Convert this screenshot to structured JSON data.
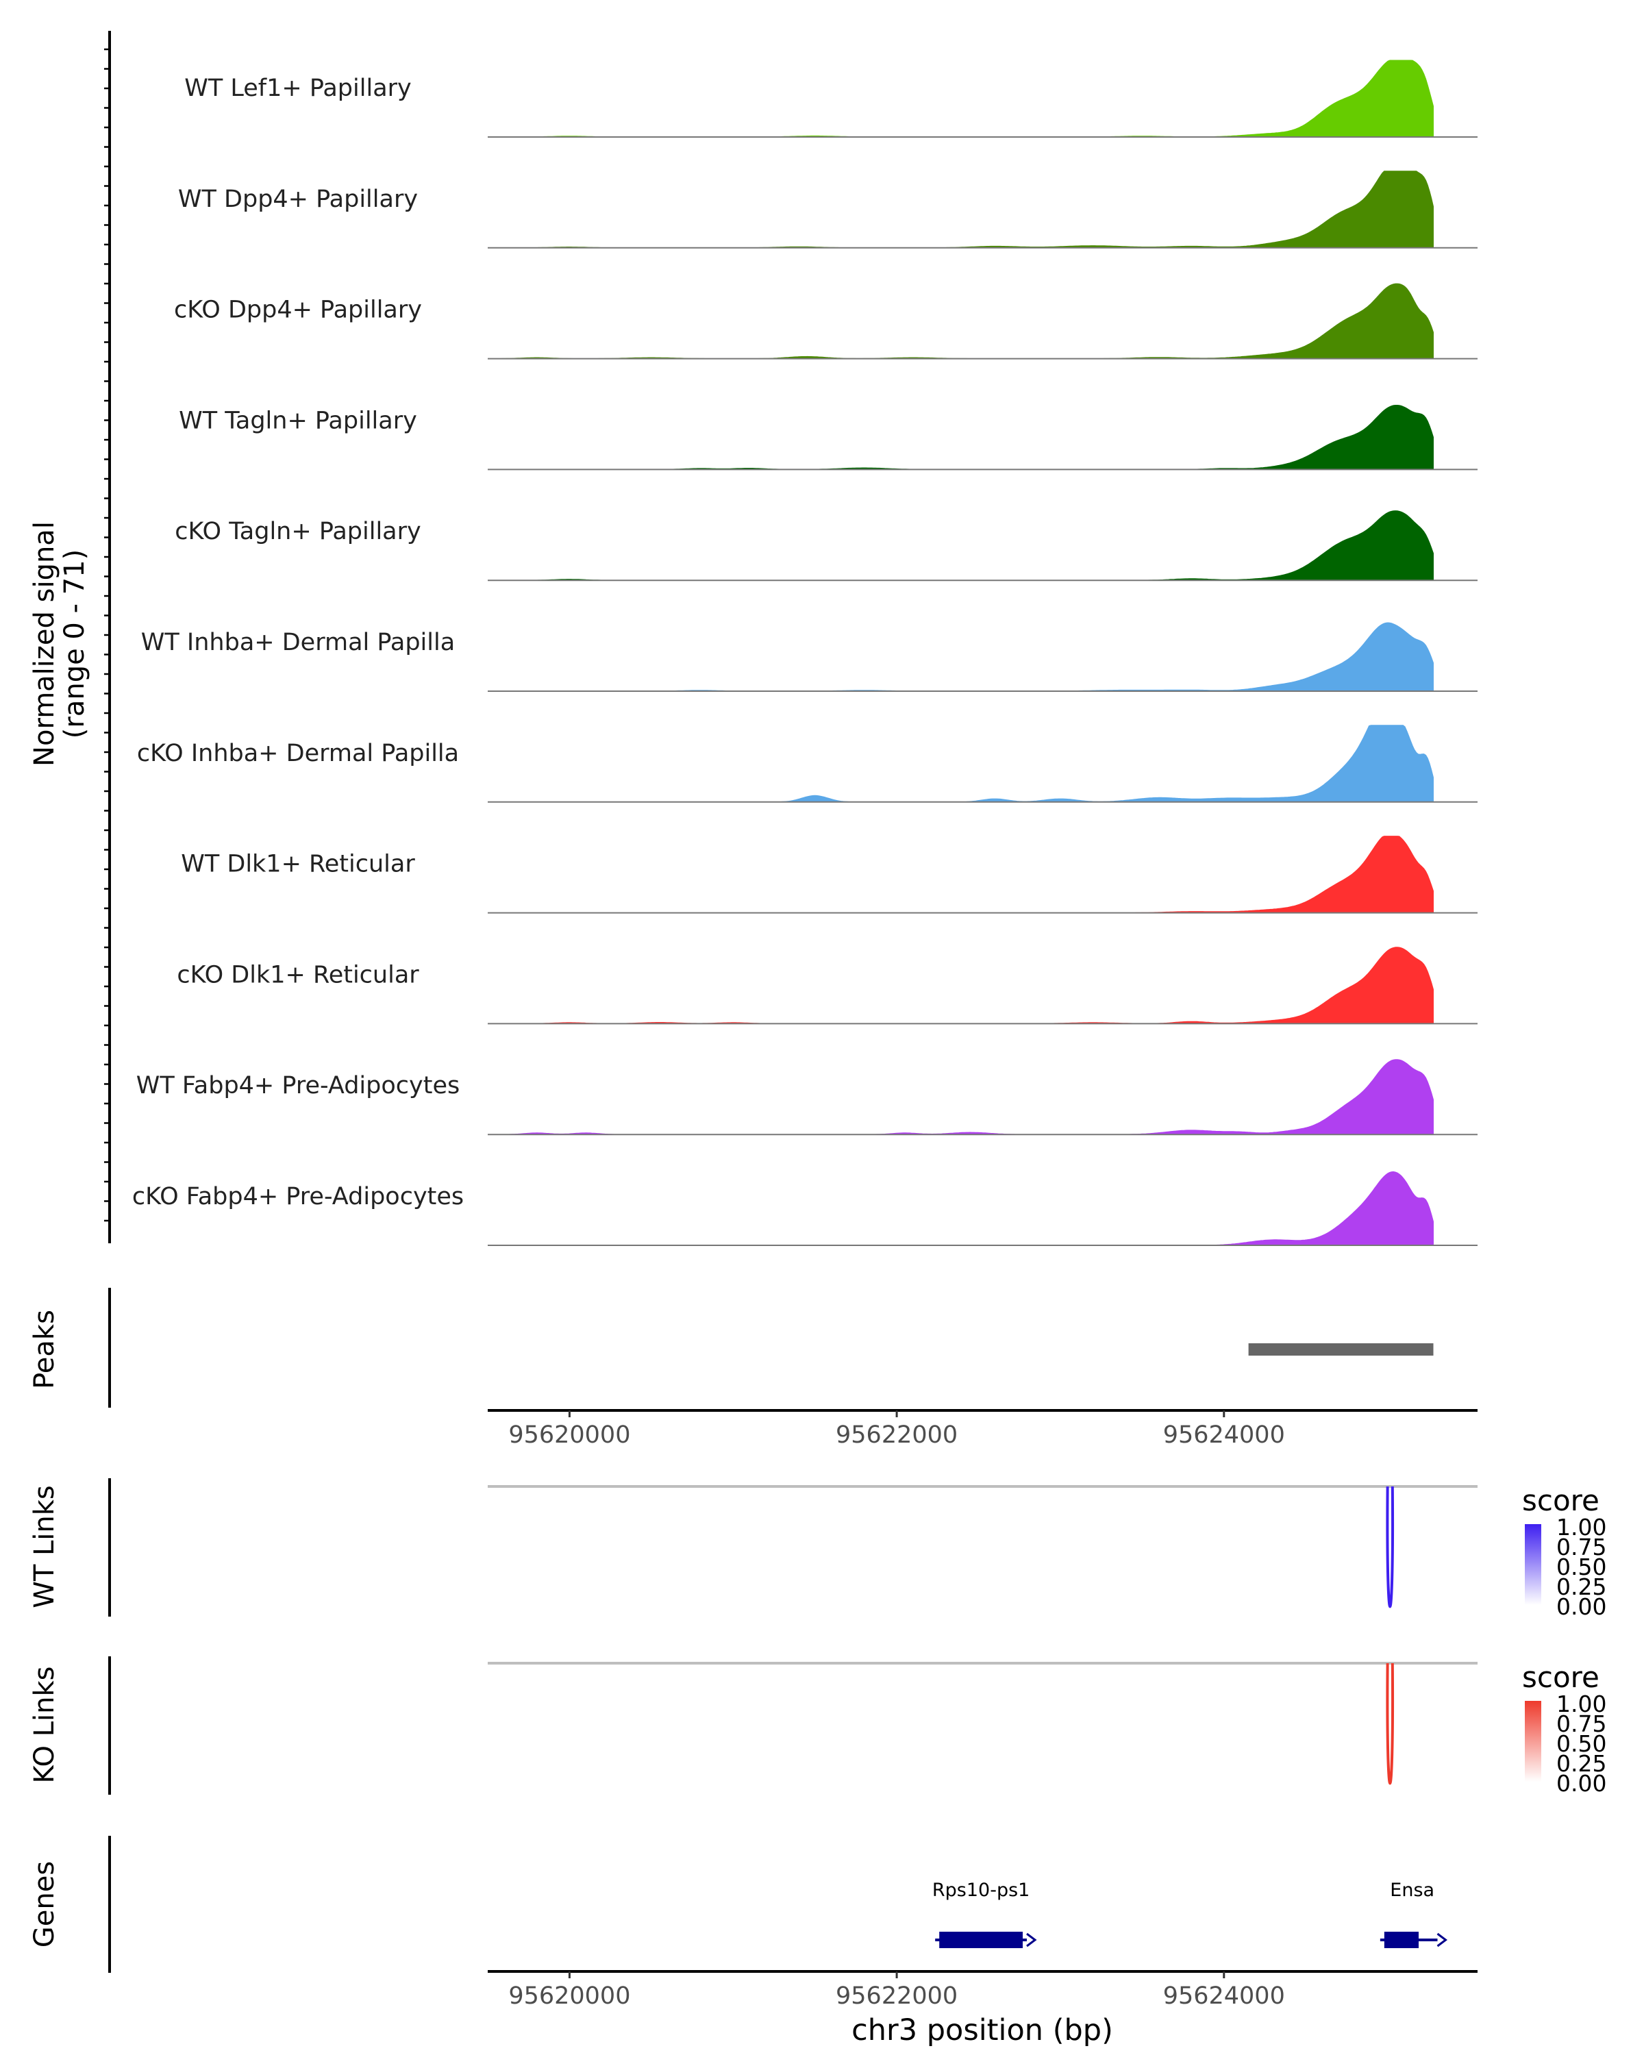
{
  "chart_data": {
    "type": "area",
    "title": "",
    "xlabel": "chr3 position (bp)",
    "xlim": [
      95619500,
      95625550
    ],
    "x_ticks": [
      95620000,
      95622000,
      95624000
    ],
    "x_tick_labels": [
      "95620000",
      "95622000",
      "95624000"
    ],
    "coverage": {
      "ylabel_line1": "Normalized signal",
      "ylabel_line2": "(range 0 - 71)",
      "ylim": [
        0,
        71
      ],
      "region_start": 95619500,
      "region_end": 95625280,
      "tracks": [
        {
          "name": "WT Lef1+ Papillary",
          "color": "#66CC00",
          "bumps": [
            [
              95620000,
              0.8,
              120
            ],
            [
              95621500,
              1,
              140
            ],
            [
              95623500,
              0.8,
              150
            ],
            [
              95624300,
              3,
              170
            ],
            [
              95624650,
              11,
              120
            ],
            [
              95624880,
              34,
              200
            ],
            [
              95625050,
              45,
              110
            ],
            [
              95625150,
              20,
              60
            ],
            [
              95625230,
              28,
              50
            ]
          ]
        },
        {
          "name": "WT Dpp4+ Papillary",
          "color": "#4A8A00",
          "bumps": [
            [
              95620000,
              0.8,
              120
            ],
            [
              95621400,
              1,
              140
            ],
            [
              95622600,
              1.5,
              150
            ],
            [
              95623200,
              2,
              200
            ],
            [
              95623800,
              1.5,
              150
            ],
            [
              95624400,
              5,
              170
            ],
            [
              95624700,
              8,
              120
            ],
            [
              95624850,
              30,
              200
            ],
            [
              95625050,
              57,
              110
            ],
            [
              95625140,
              20,
              60
            ],
            [
              95625240,
              38,
              50
            ]
          ]
        },
        {
          "name": "cKO Dpp4+ Papillary",
          "color": "#4A8A00",
          "bumps": [
            [
              95619800,
              1,
              100
            ],
            [
              95620500,
              1,
              150
            ],
            [
              95621450,
              2,
              120
            ],
            [
              95622100,
              1,
              150
            ],
            [
              95623600,
              1.2,
              150
            ],
            [
              95624350,
              4,
              200
            ],
            [
              95624700,
              8,
              150
            ],
            [
              95624880,
              35,
              200
            ],
            [
              95625050,
              40,
              100
            ],
            [
              95625150,
              18,
              60
            ],
            [
              95625250,
              20,
              40
            ]
          ]
        },
        {
          "name": "WT Tagln+ Papillary",
          "color": "#006400",
          "bumps": [
            [
              95620800,
              1,
              100
            ],
            [
              95621100,
              1.2,
              100
            ],
            [
              95621800,
              1.5,
              150
            ],
            [
              95624000,
              1,
              100
            ],
            [
              95624400,
              2,
              150
            ],
            [
              95624650,
              5,
              120
            ],
            [
              95624850,
              28,
              220
            ],
            [
              95625050,
              38,
              110
            ],
            [
              95625150,
              12,
              60
            ],
            [
              95625240,
              28,
              50
            ]
          ]
        },
        {
          "name": "cKO Tagln+ Papillary",
          "color": "#006400",
          "bumps": [
            [
              95620000,
              1,
              100
            ],
            [
              95623800,
              1.5,
              120
            ],
            [
              95624450,
              3,
              200
            ],
            [
              95624700,
              10,
              150
            ],
            [
              95624850,
              30,
              200
            ],
            [
              95625050,
              42,
              110
            ],
            [
              95625150,
              14,
              60
            ],
            [
              95625240,
              22,
              50
            ]
          ]
        },
        {
          "name": "WT Inhba+ Dermal Papilla",
          "color": "#5BA8E8",
          "bumps": [
            [
              95620800,
              0.8,
              120
            ],
            [
              95621800,
              0.8,
              150
            ],
            [
              95623400,
              1,
              200
            ],
            [
              95623800,
              1,
              150
            ],
            [
              95624350,
              5,
              150
            ],
            [
              95624600,
              6,
              120
            ],
            [
              95624880,
              28,
              200
            ],
            [
              95625020,
              40,
              120
            ],
            [
              95625150,
              12,
              60
            ],
            [
              95625240,
              24,
              50
            ]
          ]
        },
        {
          "name": "cKO Inhba+ Dermal Papilla",
          "color": "#5BA8E8",
          "bumps": [
            [
              95621500,
              6,
              80
            ],
            [
              95622600,
              3,
              80
            ],
            [
              95623000,
              3,
              100
            ],
            [
              95623600,
              4,
              150
            ],
            [
              95624000,
              3,
              150
            ],
            [
              95624400,
              4,
              200
            ],
            [
              95624700,
              9,
              120
            ],
            [
              95624880,
              35,
              150
            ],
            [
              95625000,
              62,
              100
            ],
            [
              95625130,
              25,
              60
            ],
            [
              95625240,
              32,
              40
            ]
          ]
        },
        {
          "name": "WT Dlk1+ Reticular",
          "color": "#FF3030",
          "bumps": [
            [
              95623800,
              1.2,
              150
            ],
            [
              95624350,
              3,
              200
            ],
            [
              95624650,
              6,
              120
            ],
            [
              95624880,
              32,
              200
            ],
            [
              95625030,
              48,
              110
            ],
            [
              95625150,
              14,
              60
            ],
            [
              95625240,
              18,
              40
            ]
          ]
        },
        {
          "name": "cKO Dlk1+ Reticular",
          "color": "#FF3030",
          "bumps": [
            [
              95620000,
              1,
              100
            ],
            [
              95620550,
              1.2,
              120
            ],
            [
              95621000,
              1,
              100
            ],
            [
              95623200,
              1,
              150
            ],
            [
              95623800,
              2,
              100
            ],
            [
              95624400,
              3,
              200
            ],
            [
              95624700,
              7,
              120
            ],
            [
              95624880,
              30,
              200
            ],
            [
              95625050,
              46,
              110
            ],
            [
              95625150,
              15,
              60
            ],
            [
              95625240,
              29,
              50
            ]
          ]
        },
        {
          "name": "WT Fabp4+ Pre-Adipocytes",
          "color": "#B040F0",
          "bumps": [
            [
              95619800,
              1.5,
              80
            ],
            [
              95620100,
              1.5,
              80
            ],
            [
              95622050,
              1.5,
              80
            ],
            [
              95622450,
              2,
              120
            ],
            [
              95623800,
              4,
              150
            ],
            [
              95624100,
              2,
              100
            ],
            [
              95624400,
              2,
              100
            ],
            [
              95624750,
              3,
              100
            ],
            [
              95624880,
              30,
              200
            ],
            [
              95625050,
              45,
              110
            ],
            [
              95625150,
              14,
              60
            ],
            [
              95625240,
              30,
              50
            ]
          ]
        },
        {
          "name": "cKO Fabp4+ Pre-Adipocytes",
          "color": "#B040F0",
          "bumps": [
            [
              95624300,
              5,
              150
            ],
            [
              95624700,
              5,
              150
            ],
            [
              95624900,
              32,
              150
            ],
            [
              95625050,
              45,
              100
            ],
            [
              95625150,
              12,
              60
            ],
            [
              95625240,
              27,
              40
            ]
          ]
        }
      ]
    },
    "peaks": {
      "label": "Peaks",
      "color": "#666666",
      "ranges": [
        [
          95624150,
          95625280
        ]
      ]
    },
    "links": [
      {
        "label": "WT Links",
        "legend_title": "score",
        "color": "#3E1FF0",
        "legend_gradient": [
          "#3E1FF0",
          "#FFFFFF"
        ],
        "legend_ticks": [
          "1.00",
          "0.75",
          "0.50",
          "0.25",
          "0.00"
        ],
        "arcs": [
          {
            "start": 95625000,
            "end": 95625030,
            "score": 1.0
          }
        ]
      },
      {
        "label": "KO Links",
        "legend_title": "score",
        "color": "#EE3A2C",
        "legend_gradient": [
          "#EE3A2C",
          "#FFFFFF"
        ],
        "legend_ticks": [
          "1.00",
          "0.75",
          "0.50",
          "0.25",
          "0.00"
        ],
        "arcs": [
          {
            "start": 95625000,
            "end": 95625030,
            "score": 1.0
          }
        ]
      }
    ],
    "genes": {
      "label": "Genes",
      "color": "#00008B",
      "items": [
        {
          "name": "Rps10-ps1",
          "start": 95622260,
          "end": 95622770
        },
        {
          "name": "Ensa",
          "start": 95624980,
          "end": 95625280
        }
      ]
    }
  }
}
